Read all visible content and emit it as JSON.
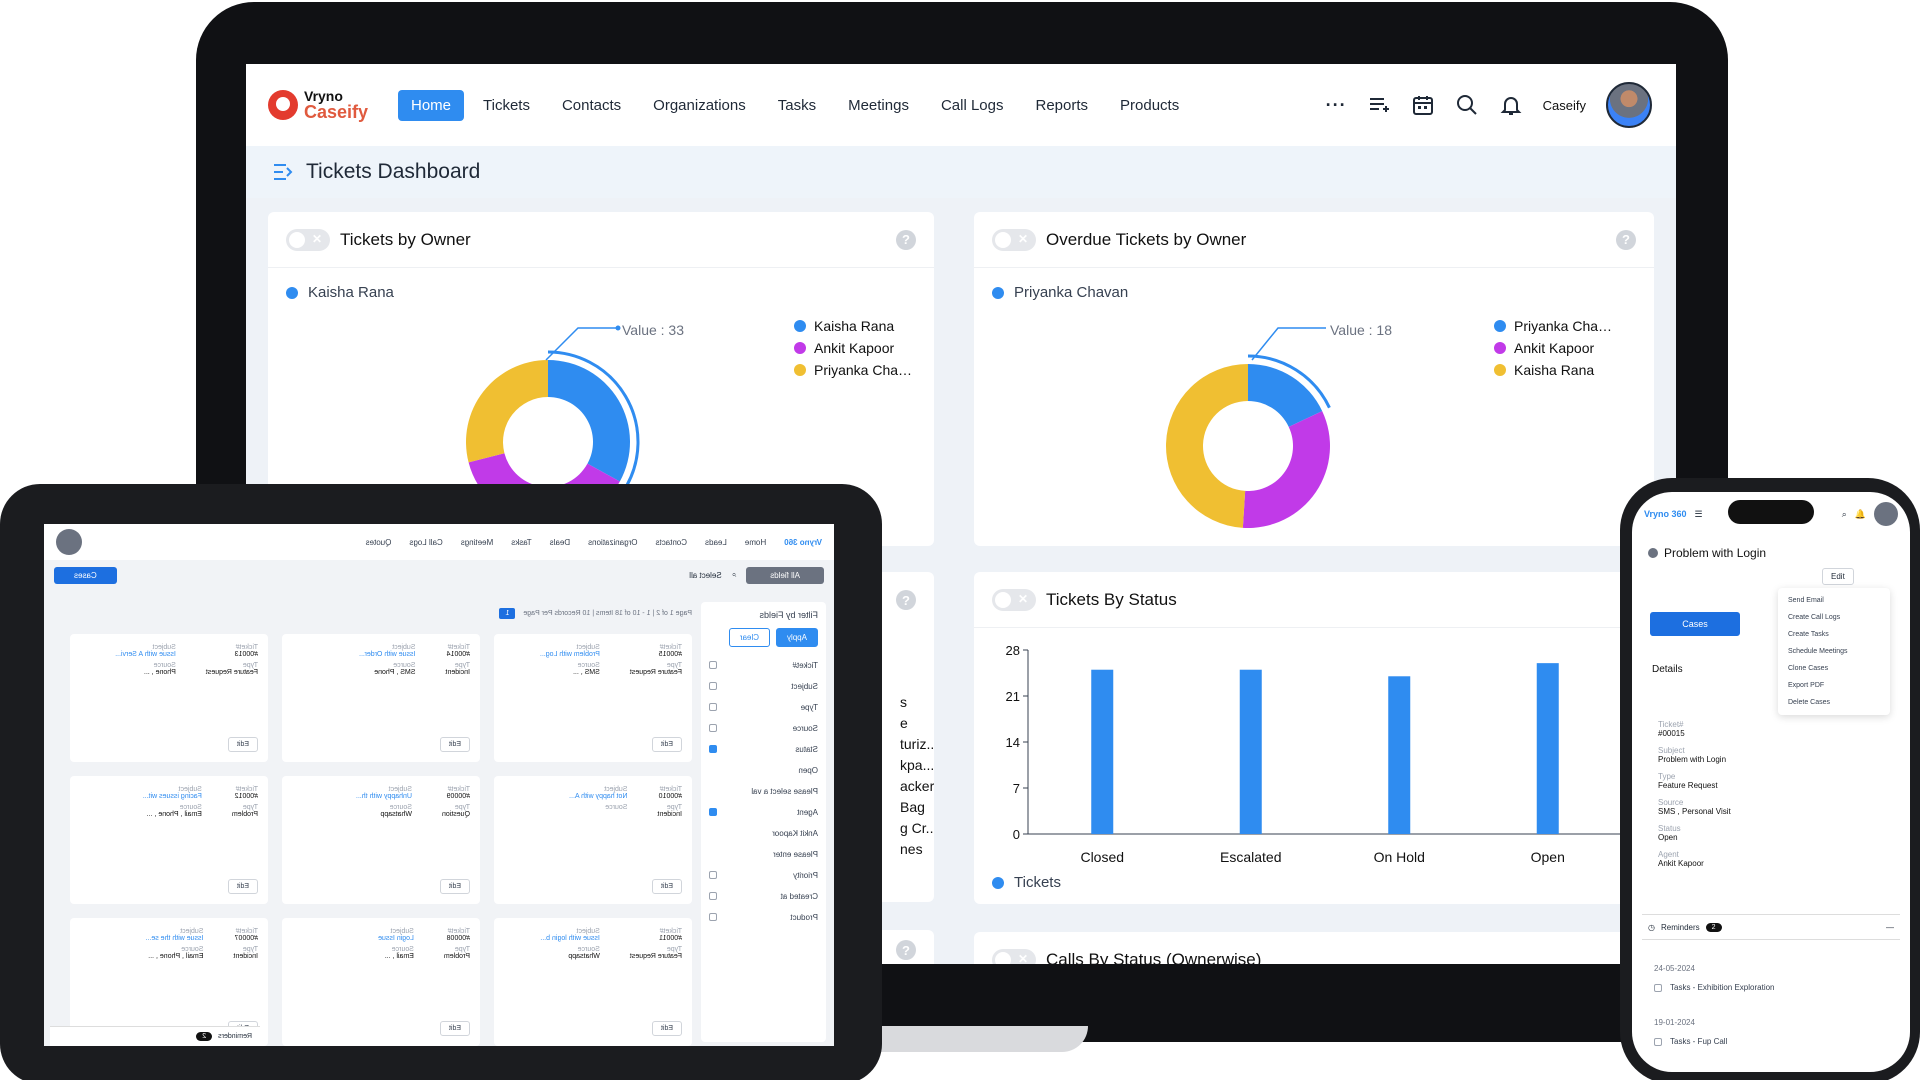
{
  "laptop": {
    "brand": {
      "top": "Vryno",
      "bottom": "Caseify"
    },
    "nav": [
      {
        "label": "Home",
        "active": true
      },
      {
        "label": "Tickets"
      },
      {
        "label": "Contacts"
      },
      {
        "label": "Organizations"
      },
      {
        "label": "Tasks"
      },
      {
        "label": "Meetings"
      },
      {
        "label": "Call Logs"
      },
      {
        "label": "Reports"
      },
      {
        "label": "Products"
      }
    ],
    "more": "···",
    "username": "Caseify",
    "page_title": "Tickets Dashboard",
    "cards": {
      "owner": {
        "title": "Tickets by Owner",
        "selected": "Kaisha Rana",
        "value_tag": "Value : 33",
        "legend": [
          "Kaisha Rana",
          "Ankit Kapoor",
          "Priyanka Cha…"
        ]
      },
      "overdue": {
        "title": "Overdue Tickets by Owner",
        "selected": "Priyanka Chavan",
        "value_tag": "Value : 18",
        "legend": [
          "Priyanka Cha…",
          "Ankit Kapoor",
          "Kaisha Rana"
        ]
      },
      "status": {
        "title": "Tickets By Status",
        "legend": "Tickets"
      },
      "calls": {
        "title": "Calls By Status (Ownerwise)"
      },
      "partial": {
        "lines": [
          "s",
          "e",
          "turiz...",
          "kpa...",
          "acker",
          "Bag",
          "g Cr...",
          "nes"
        ]
      }
    },
    "help": "?"
  },
  "chart_data": [
    {
      "type": "pie",
      "title": "Tickets by Owner",
      "labels": [
        "Kaisha Rana",
        "Ankit Kapoor",
        "Priyanka Cha…"
      ],
      "values": [
        33,
        38,
        29
      ],
      "colors": [
        "#2f8cf0",
        "#c13ae8",
        "#f0bf32"
      ]
    },
    {
      "type": "pie",
      "title": "Overdue Tickets by Owner",
      "labels": [
        "Priyanka Cha…",
        "Ankit Kapoor",
        "Kaisha Rana"
      ],
      "values": [
        18,
        33,
        49
      ],
      "colors": [
        "#2f8cf0",
        "#c13ae8",
        "#f0bf32"
      ]
    },
    {
      "type": "bar",
      "title": "Tickets By Status",
      "categories": [
        "Closed",
        "Escalated",
        "On Hold",
        "Open"
      ],
      "series": [
        {
          "name": "Tickets",
          "values": [
            25,
            25,
            24,
            26
          ],
          "color": "#2f8cf0"
        }
      ],
      "yticks": [
        "28",
        "21",
        "14",
        "7",
        "0"
      ],
      "ylim": [
        0,
        28
      ]
    }
  ],
  "tablet": {
    "nav": [
      "Home",
      "Leads",
      "Contacts",
      "Organizations",
      "Deals",
      "Tasks",
      "Meetings",
      "Call Logs",
      "Quotes"
    ],
    "brand": "Vryno 360",
    "filter_title": "Filter by Fields",
    "apply": "Apply",
    "clear": "Clear",
    "all_fields": "All fields",
    "select_all": "Select all",
    "cases_btn": "Cases",
    "pager": "Page 1 of 2 | 1 - 10 of 18 Items | 10 Records Per Page",
    "page_num": "1",
    "fields": [
      "Ticket#",
      "Subject",
      "Type",
      "Source",
      "Status",
      "Open",
      "Please select a val",
      "Agent",
      "Ankit Kapoor",
      "Please enter",
      "Priority",
      "Created at",
      "Product"
    ],
    "cards": [
      {
        "ticket": "#00015",
        "subject": "Problem with Log...",
        "type": "Feature Request",
        "source": "SMS , ..."
      },
      {
        "ticket": "#00014",
        "subject": "Issue with Order...",
        "type": "Incident",
        "source": "SMS , Phone"
      },
      {
        "ticket": "#00013",
        "subject": "Issue with A Servi...",
        "type": "Feature Request",
        "source": "Phone , ..."
      },
      {
        "ticket": "#00010",
        "subject": "Not happy with A...",
        "type": "Incident",
        "source": ""
      },
      {
        "ticket": "#00009",
        "subject": "Unhappy with th...",
        "type": "Question",
        "source": "Whatsapp"
      },
      {
        "ticket": "#00012",
        "subject": "Facing issues wit...",
        "type": "Problem",
        "source": "Email , Phone , ..."
      },
      {
        "ticket": "#00011",
        "subject": "Issue with login b...",
        "type": "Feature Request",
        "source": "Whatsapp"
      },
      {
        "ticket": "#00008",
        "subject": "Login Issue",
        "type": "Problem",
        "source": "Email , ..."
      },
      {
        "ticket": "#00007",
        "subject": "Issue with the se...",
        "type": "Incident",
        "source": "Email , Phone , ..."
      }
    ],
    "labels": {
      "ticket": "Ticket#",
      "subject": "Subject",
      "type": "Type",
      "source": "Source",
      "edit": "Edit"
    },
    "reminders": "Reminders",
    "reminder_count": "2"
  },
  "phone": {
    "brand": "Vryno 360",
    "title": "Problem with Login",
    "edit": "Edit",
    "cases": "Cases",
    "menu": [
      "Send Email",
      "Create Call Logs",
      "Create Tasks",
      "Schedule Meetings",
      "Clone Cases",
      "Export PDF",
      "Delete Cases"
    ],
    "details": "Details",
    "fields": [
      {
        "label": "Ticket#",
        "value": "#00015"
      },
      {
        "label": "Subject",
        "value": "Problem with Login"
      },
      {
        "label": "Type",
        "value": "Feature Request"
      },
      {
        "label": "Source",
        "value": "SMS , Personal Visit"
      },
      {
        "label": "Status",
        "value": "Open"
      },
      {
        "label": "Agent",
        "value": "Ankit Kapoor"
      }
    ],
    "reminders": "Reminders",
    "reminder_count": "2",
    "reminder_items": [
      {
        "date": "24-05-2024",
        "task": "Tasks - Exhibition Exploration"
      },
      {
        "date": "19-01-2024",
        "task": "Tasks - Fup Call"
      }
    ]
  }
}
